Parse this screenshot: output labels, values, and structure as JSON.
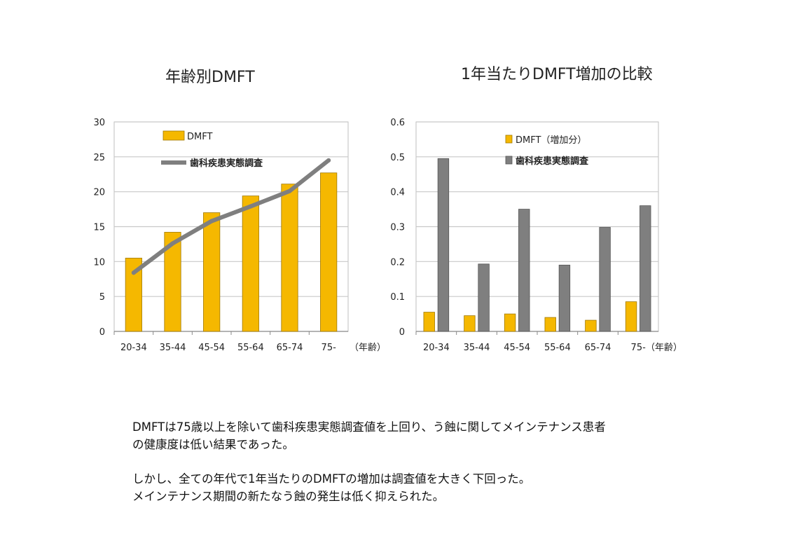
{
  "chart_data": [
    {
      "type": "bar+line",
      "title": "年齢別DMFT",
      "categories": [
        "20-34",
        "35-44",
        "45-54",
        "55-64",
        "65-74",
        "75-"
      ],
      "xunit": "（年齢）",
      "ylim": [
        0,
        30
      ],
      "yticks": [
        0,
        5,
        10,
        15,
        20,
        25,
        30
      ],
      "ytick_labels": [
        "0",
        "5",
        "10",
        "15",
        "20",
        "25",
        "30"
      ],
      "grid": true,
      "legend_position": "top-left",
      "series": [
        {
          "name": "DMFT",
          "kind": "bar",
          "color": "#f5b800",
          "values": [
            10.5,
            14.2,
            17.0,
            19.4,
            21.1,
            22.7
          ]
        },
        {
          "name": "歯科疾患実態調査",
          "kind": "line",
          "color": "#7f7f7f",
          "values": [
            8.4,
            12.6,
            15.8,
            17.9,
            20.1,
            24.5
          ]
        }
      ]
    },
    {
      "type": "bar",
      "title": "1年当たりDMFT増加の比較",
      "categories": [
        "20-34",
        "35-44",
        "45-54",
        "55-64",
        "65-74",
        "75-"
      ],
      "xunit": "（年齢）",
      "ylim": [
        0,
        0.6
      ],
      "yticks": [
        0,
        0.1,
        0.2,
        0.3,
        0.4,
        0.5,
        0.6
      ],
      "ytick_labels": [
        "0",
        "0.1",
        "0.2",
        "0.3",
        "0.4",
        "0.5",
        "0.6"
      ],
      "grid": true,
      "legend_position": "top-left",
      "series": [
        {
          "name": "DMFT（増加分）",
          "kind": "bar",
          "color": "#f5b800",
          "values": [
            0.055,
            0.045,
            0.05,
            0.04,
            0.032,
            0.085
          ]
        },
        {
          "name": "歯科疾患実態調査",
          "kind": "bar",
          "color": "#7f7f7f",
          "values": [
            0.495,
            0.193,
            0.35,
            0.19,
            0.298,
            0.36
          ]
        }
      ]
    }
  ],
  "notes": {
    "paragraph1_line1": "DMFTは75歳以上を除いて歯科疾患実態調査値を上回り、う蝕に関してメインテナンス患者",
    "paragraph1_line2": "の健康度は低い結果であった。",
    "paragraph2_line1": "しかし、全ての年代で1年当たりのDMFTの増加は調査値を大きく下回った。",
    "paragraph2_line2": "メインテナンス期間の新たなう蝕の発生は低く抑えられた。"
  }
}
